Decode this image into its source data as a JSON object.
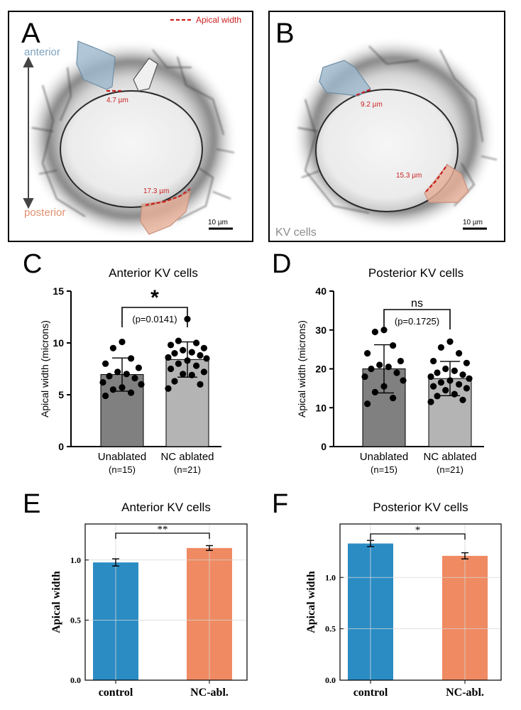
{
  "panels": {
    "A": {
      "letter": "A",
      "legend_label": "Apical width",
      "anterior_label": "anterior",
      "posterior_label": "posterior",
      "measure_top": "4.7 µm",
      "measure_bottom": "17.3 µm",
      "scale_bar": "10 µm"
    },
    "B": {
      "letter": "B",
      "measure_top": "9.2 µm",
      "measure_bottom": "15.3 µm",
      "scale_bar": "10 µm",
      "caption": "KV cells"
    },
    "C": {
      "letter": "C"
    },
    "D": {
      "letter": "D"
    },
    "E": {
      "letter": "E"
    },
    "F": {
      "letter": "F"
    }
  },
  "colors": {
    "anterior_fill": "#9db8cc",
    "posterior_fill": "#e8b09a",
    "measure_red": "#cc1f1f",
    "bar_dark": "#808080",
    "bar_light": "#b4b4b4",
    "bar_blue": "#2b8cc4",
    "bar_orange": "#ef8a62"
  },
  "chart_data": [
    {
      "id": "C",
      "type": "bar",
      "title": "Anterior KV cells",
      "ylabel": "Apical width (microns)",
      "ylim": [
        0,
        15
      ],
      "yticks": [
        0,
        5,
        10,
        15
      ],
      "categories": [
        "Unablated",
        "NC ablated"
      ],
      "category_n": [
        "(n=15)",
        "(n=21)"
      ],
      "values": [
        6.95,
        8.4
      ],
      "sd": [
        1.6,
        1.7
      ],
      "points": [
        [
          10.1,
          9.5,
          8.5,
          8.0,
          7.6,
          7.2,
          7.0,
          6.8,
          6.6,
          6.2,
          6.0,
          5.7,
          5.5,
          5.2,
          4.9
        ],
        [
          12.3,
          10.2,
          10.0,
          9.8,
          9.5,
          9.3,
          9.1,
          9.0,
          8.8,
          8.6,
          8.5,
          8.3,
          8.0,
          7.8,
          7.5,
          7.2,
          7.0,
          6.9,
          6.3,
          6.0,
          5.6
        ]
      ],
      "significance": "*",
      "p_text": "(p=0.0141)"
    },
    {
      "id": "D",
      "type": "bar",
      "title": "Posterior KV cells",
      "ylabel": "Apical width (microns)",
      "ylim": [
        0,
        40
      ],
      "yticks": [
        0,
        10,
        20,
        30,
        40
      ],
      "categories": [
        "Unablated",
        "NC ablated"
      ],
      "category_n": [
        "(n=15)",
        "(n=21)"
      ],
      "values": [
        20.0,
        17.5
      ],
      "sd": [
        6.2,
        4.4
      ],
      "points": [
        [
          30.0,
          29.5,
          26.0,
          24.0,
          22.0,
          21.0,
          20.5,
          20.0,
          19.0,
          18.0,
          17.0,
          15.5,
          14.0,
          12.5,
          11.0
        ],
        [
          27.0,
          25.5,
          24.0,
          22.0,
          21.5,
          20.0,
          19.5,
          19.0,
          18.5,
          18.0,
          17.5,
          17.0,
          16.5,
          16.0,
          15.5,
          15.0,
          14.5,
          13.5,
          13.0,
          12.0,
          11.5
        ]
      ],
      "significance": "ns",
      "p_text": "(p=0.1725)"
    },
    {
      "id": "E",
      "type": "bar",
      "title": "Anterior KV cells",
      "ylabel": "Apical width",
      "ylim": [
        0,
        1.3
      ],
      "yticks": [
        0.0,
        0.5,
        1.0
      ],
      "ytick_labels": [
        "0.0",
        "0.5",
        "1.0"
      ],
      "categories": [
        "control",
        "NC-abl."
      ],
      "values": [
        0.98,
        1.1
      ],
      "errors": [
        0.03,
        0.02
      ],
      "significance": "**",
      "grid": true
    },
    {
      "id": "F",
      "type": "bar",
      "title": "Posterior KV cells",
      "ylabel": "Apical width",
      "ylim": [
        0,
        1.52
      ],
      "yticks": [
        0.0,
        0.5,
        1.0
      ],
      "ytick_labels": [
        "0.0",
        "0.5",
        "1.0"
      ],
      "categories": [
        "control",
        "NC-abl."
      ],
      "values": [
        1.33,
        1.21
      ],
      "errors": [
        0.03,
        0.03
      ],
      "significance": "*",
      "grid": true
    }
  ]
}
